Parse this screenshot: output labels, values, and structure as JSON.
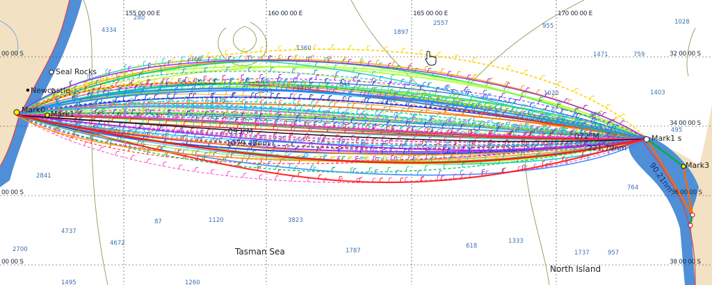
{
  "map": {
    "grid": {
      "longitudes": [
        "155 00 00 E",
        "160 00 00 E",
        "165 00 00 E",
        "170 00 00 E"
      ],
      "latitudes": [
        "32 00 00 S",
        "34 00 00 S",
        "36 00 00 S",
        "38 00 00 S"
      ]
    },
    "depth_soundings": [
      "280",
      "4334",
      "1897",
      "2557",
      "955",
      "1028",
      "1360",
      "1471",
      "759",
      "766",
      "841",
      "1843",
      "1319",
      "1875",
      "1020",
      "1403",
      "470",
      "495",
      "2244",
      "2841",
      "764",
      "4737",
      "2700",
      "4672",
      "87",
      "1120",
      "1787",
      "1333",
      "1737",
      "957",
      "618",
      "3823",
      "1495",
      "1260"
    ],
    "places": {
      "seal_rocks": "Seal Rocks",
      "newcastle": "Newcastle",
      "sea": "Tasman Sea",
      "north_island": "North Island"
    },
    "marks": {
      "mark0": "Mark0",
      "mark1": "Mark1",
      "mark1s": "Mark1 s",
      "mark3": "Mark3"
    },
    "route_annotations": {
      "course_left": "093°M",
      "distance_left": "1079.48nm",
      "course_right": "072°M",
      "distance_right": "221.79nm",
      "coast_distance": "90.21nm"
    },
    "colors": {
      "water": "#ffffff",
      "land": "#f2e1c2",
      "shallow": "#4f8fd8",
      "coast_outline": "#e83a3a",
      "rhumb_line": "#111111",
      "route_palette": [
        "#1f2fe0",
        "#2a7fff",
        "#00b7ff",
        "#20d0c0",
        "#00d060",
        "#7ee52a",
        "#b0ff40",
        "#ff9a00",
        "#ff6a00",
        "#ff1a1a",
        "#d21f1f",
        "#a020f0",
        "#ff3fd0",
        "#ffd400"
      ]
    },
    "cursor_icon": "hand-pointer-icon"
  }
}
